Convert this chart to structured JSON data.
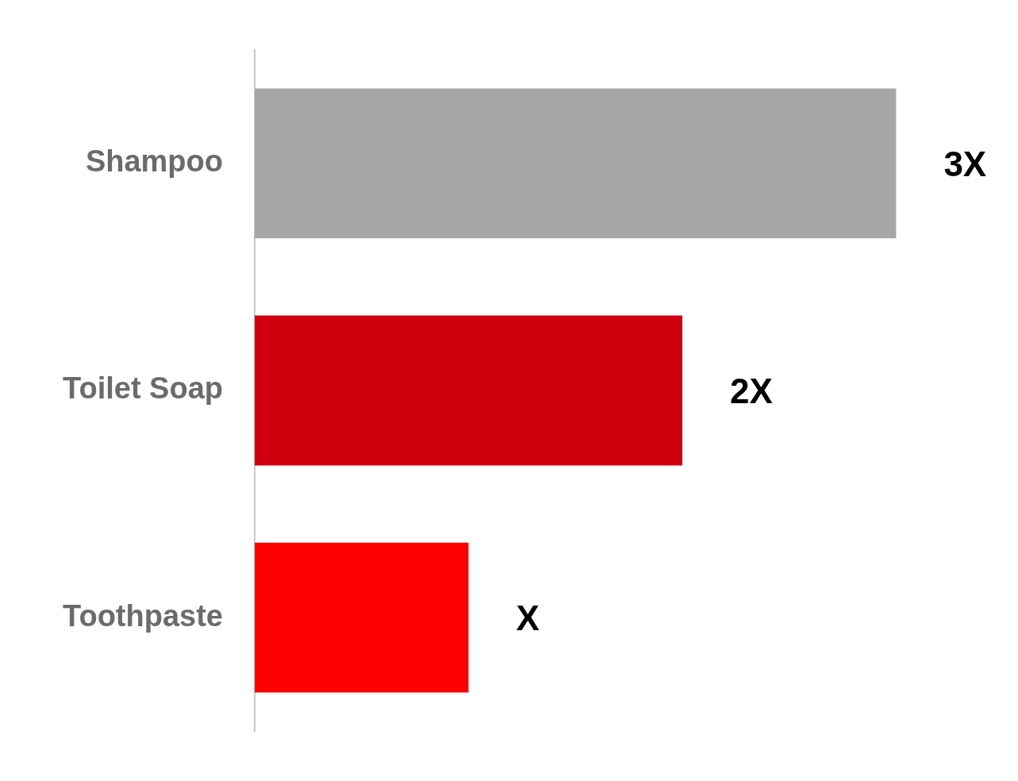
{
  "chart_data": {
    "type": "bar",
    "orientation": "horizontal",
    "categories": [
      "Shampoo",
      "Toilet Soap",
      "Toothpaste"
    ],
    "values": [
      3,
      2,
      1
    ],
    "colors": [
      "#a6a6a6",
      "#d0000f",
      "#ff0000"
    ],
    "value_labels": [
      "3X",
      "2X",
      "X"
    ],
    "legend": false
  }
}
